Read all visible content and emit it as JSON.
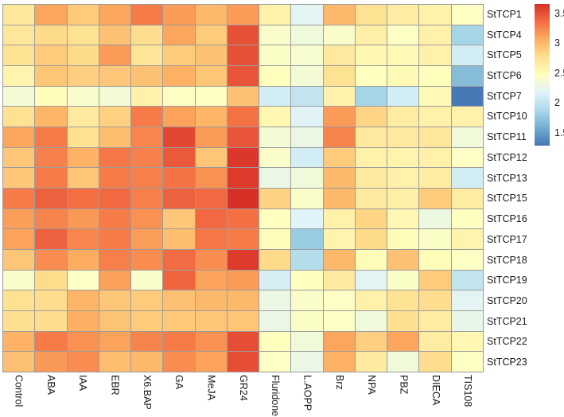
{
  "chart_data": {
    "type": "heatmap",
    "title": "",
    "rows": [
      "StTCP1",
      "StTCP4",
      "StTCP5",
      "StTCP6",
      "StTCP7",
      "StTCP10",
      "StTCP11",
      "StTCP12",
      "StTCP13",
      "StTCP15",
      "StTCP16",
      "StTCP17",
      "StTCP18",
      "StTCP19",
      "StTCP20",
      "StTCP21",
      "StTCP22",
      "StTCP23"
    ],
    "columns": [
      "Control",
      "ABA",
      "IAA",
      "EBR",
      "X6.BAP",
      "GA",
      "MeJA",
      "GR24",
      "Fluridone",
      "L.AOPP",
      "Brz",
      "NPA",
      "PBZ",
      "DIECA",
      "TIS108"
    ],
    "values": [
      [
        2.7,
        3.1,
        2.9,
        3.1,
        3.3,
        3.15,
        3.0,
        3.15,
        2.6,
        2.2,
        3.0,
        2.75,
        2.65,
        2.6,
        2.45
      ],
      [
        2.7,
        2.8,
        2.75,
        2.95,
        2.78,
        3.1,
        2.9,
        3.5,
        2.42,
        2.32,
        2.42,
        2.62,
        2.45,
        2.6,
        1.85
      ],
      [
        2.75,
        2.9,
        2.8,
        3.15,
        2.73,
        2.9,
        2.95,
        3.5,
        2.43,
        2.38,
        2.68,
        2.55,
        2.53,
        2.6,
        2.1
      ],
      [
        2.58,
        2.93,
        2.87,
        2.92,
        2.95,
        3.05,
        2.93,
        3.48,
        2.48,
        2.35,
        2.75,
        2.47,
        2.53,
        2.48,
        1.68
      ],
      [
        2.35,
        2.5,
        2.4,
        2.35,
        2.6,
        2.45,
        2.45,
        2.95,
        2.1,
        2.0,
        2.6,
        1.85,
        2.1,
        2.53,
        1.3
      ],
      [
        2.76,
        3.02,
        2.68,
        2.86,
        3.3,
        3.12,
        3.02,
        3.34,
        2.55,
        2.18,
        3.15,
        2.83,
        2.65,
        2.6,
        2.6
      ],
      [
        3.1,
        3.3,
        2.76,
        2.97,
        3.25,
        3.55,
        3.15,
        3.48,
        2.36,
        2.28,
        3.26,
        2.68,
        2.68,
        2.7,
        2.33
      ],
      [
        2.92,
        3.27,
        3.04,
        3.32,
        3.27,
        3.46,
        2.93,
        3.62,
        2.42,
        2.1,
        2.9,
        2.6,
        2.58,
        2.6,
        2.44
      ],
      [
        2.92,
        3.3,
        2.93,
        3.3,
        3.28,
        3.34,
        3.2,
        3.6,
        2.27,
        2.33,
        3.0,
        2.67,
        2.6,
        2.65,
        2.1
      ],
      [
        3.3,
        3.42,
        3.36,
        3.38,
        3.28,
        3.42,
        3.38,
        3.7,
        2.85,
        2.42,
        3.0,
        2.66,
        2.62,
        2.9,
        2.65
      ],
      [
        3.14,
        3.26,
        3.16,
        3.3,
        3.2,
        2.92,
        3.38,
        3.35,
        2.47,
        2.17,
        2.6,
        2.84,
        2.54,
        2.3,
        2.47
      ],
      [
        3.12,
        3.42,
        3.25,
        3.3,
        3.14,
        2.97,
        3.32,
        3.3,
        2.5,
        1.78,
        2.58,
        2.8,
        2.5,
        2.43,
        2.58
      ],
      [
        2.93,
        3.22,
        3.07,
        3.28,
        3.22,
        3.37,
        3.22,
        3.6,
        2.8,
        1.92,
        3.0,
        2.5,
        2.95,
        2.5,
        2.45
      ],
      [
        2.42,
        2.79,
        2.44,
        3.13,
        2.42,
        3.4,
        3.12,
        3.15,
        2.12,
        2.47,
        2.67,
        2.2,
        2.43,
        2.9,
        2.0
      ],
      [
        2.76,
        2.78,
        3.02,
        2.92,
        2.9,
        2.96,
        3.0,
        3.0,
        2.28,
        2.42,
        2.44,
        2.6,
        2.74,
        2.78,
        2.2
      ],
      [
        2.77,
        2.78,
        3.06,
        2.94,
        2.9,
        2.91,
        2.93,
        2.93,
        2.27,
        2.43,
        2.44,
        2.32,
        2.77,
        2.65,
        2.25
      ],
      [
        3.04,
        3.3,
        3.2,
        3.12,
        3.26,
        3.3,
        3.2,
        3.52,
        2.48,
        2.34,
        3.1,
        2.87,
        3.1,
        2.65,
        2.55
      ],
      [
        2.96,
        3.16,
        3.22,
        2.98,
        3.0,
        3.22,
        3.12,
        3.52,
        2.44,
        2.27,
        3.04,
        2.66,
        2.33,
        2.78,
        2.45
      ]
    ],
    "colormap": [
      "#4575B4",
      "#74ADD1",
      "#ABD9E9",
      "#E0F3F8",
      "#FFFFBF",
      "#FEE090",
      "#FDAE61",
      "#F46D43",
      "#D73027"
    ],
    "domain": [
      1.28,
      3.66
    ],
    "grid_line_color": "#9c9c9c",
    "legend_position": "right",
    "colorbar": {
      "ticks": [
        "3.5",
        "3",
        "2.5",
        "2",
        "1.5"
      ],
      "tick_values": [
        3.5,
        3.0,
        2.5,
        2.0,
        1.5
      ]
    }
  }
}
